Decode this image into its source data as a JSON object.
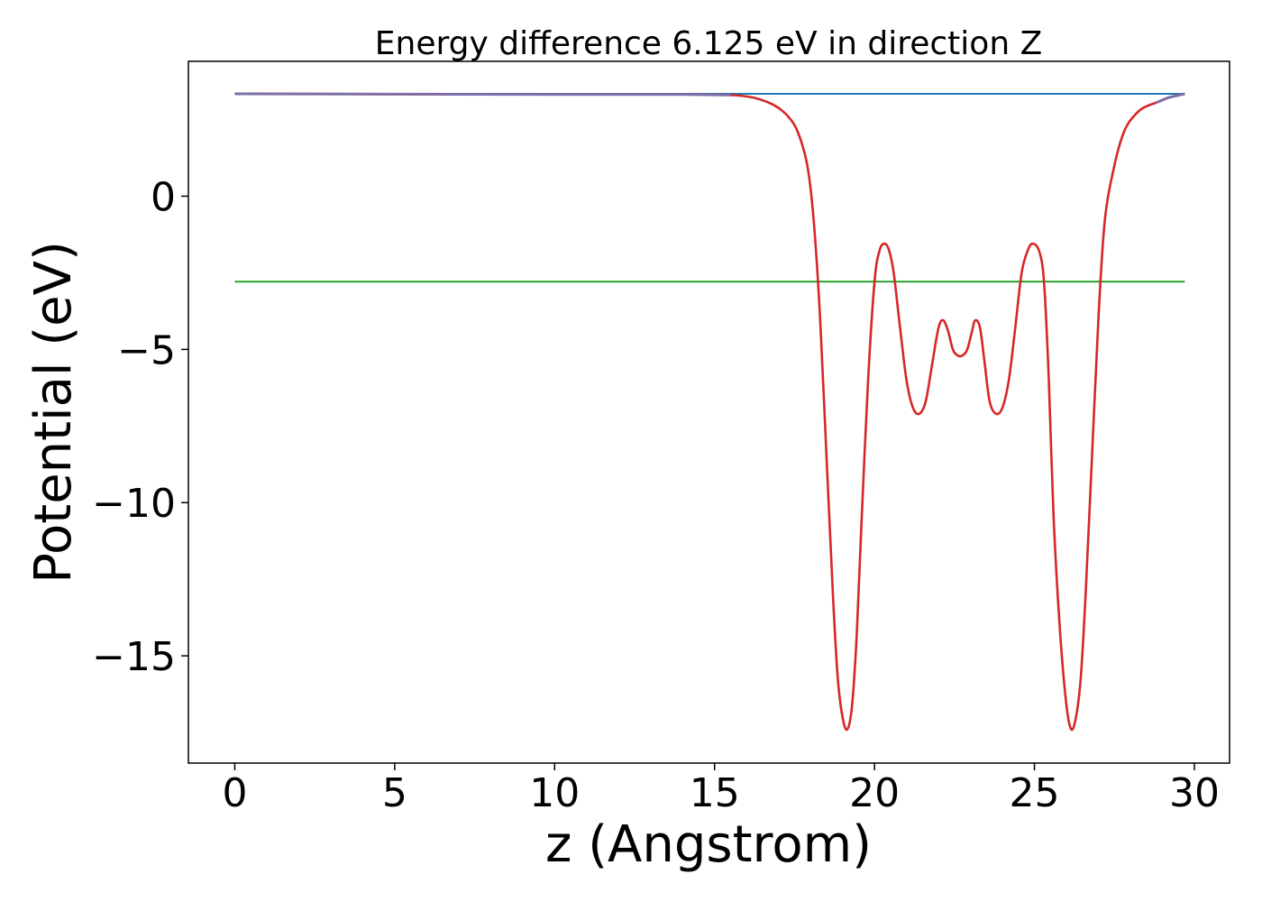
{
  "chart_data": {
    "type": "line",
    "title": "Energy difference 6.125 eV in direction Z",
    "xlabel": "z (Angstrom)",
    "ylabel": "Potential (eV)",
    "xlim": [
      -1.45,
      31.1
    ],
    "ylim": [
      -18.5,
      4.4
    ],
    "xticks": [
      0,
      5,
      10,
      15,
      20,
      25,
      30
    ],
    "yticks": [
      0,
      -5,
      -10,
      -15
    ],
    "xtick_labels": [
      "0",
      "5",
      "10",
      "15",
      "20",
      "25",
      "30"
    ],
    "ytick_labels": [
      "0",
      "−5",
      "−10",
      "−15"
    ],
    "grid": false,
    "colors": {
      "vacuum_level": "#1f77b4",
      "fermi_level": "#2ca02c",
      "potential": "#d62728",
      "overlap": "#7f6fa8"
    },
    "series": [
      {
        "style": "hline",
        "color_key": "vacuum_level",
        "x": [
          0,
          29.7
        ],
        "y": [
          3.34,
          3.34
        ]
      },
      {
        "style": "hline",
        "color_key": "fermi_level",
        "x": [
          0,
          29.7
        ],
        "y": [
          -2.79,
          -2.79
        ]
      },
      {
        "style": "curve",
        "color_key": "potential",
        "x": [
          0,
          5,
          10,
          14,
          15.5,
          16.2,
          16.7,
          17.0,
          17.3,
          17.6,
          17.9,
          18.1,
          18.3,
          18.5,
          18.7,
          18.85,
          19.0,
          19.15,
          19.3,
          19.45,
          19.6,
          19.8,
          20.0,
          20.15,
          20.3,
          20.45,
          20.6,
          20.8,
          21.0,
          21.2,
          21.4,
          21.6,
          21.8,
          22.0,
          22.15,
          22.3,
          22.45,
          22.6,
          22.75,
          22.9,
          23.05,
          23.15,
          23.3,
          23.45,
          23.6,
          23.8,
          24.0,
          24.2,
          24.4,
          24.6,
          24.8,
          24.95,
          25.15,
          25.3,
          25.45,
          25.6,
          25.8,
          26.0,
          26.15,
          26.3,
          26.45,
          26.6,
          26.8,
          27.0,
          27.2,
          27.5,
          27.8,
          28.1,
          28.4,
          28.8,
          29.2,
          29.7
        ],
        "y": [
          3.34,
          3.33,
          3.32,
          3.32,
          3.3,
          3.22,
          3.05,
          2.88,
          2.6,
          2.1,
          1.0,
          -0.8,
          -4.0,
          -8.5,
          -13.0,
          -15.7,
          -17.0,
          -17.4,
          -16.6,
          -14.2,
          -10.5,
          -6.0,
          -2.8,
          -1.8,
          -1.55,
          -1.75,
          -2.5,
          -4.3,
          -6.0,
          -6.9,
          -7.1,
          -6.7,
          -5.5,
          -4.3,
          -4.05,
          -4.4,
          -5.0,
          -5.2,
          -5.2,
          -5.0,
          -4.4,
          -4.05,
          -4.3,
          -5.5,
          -6.7,
          -7.1,
          -6.9,
          -6.0,
          -4.3,
          -2.5,
          -1.75,
          -1.55,
          -1.8,
          -2.8,
          -6.0,
          -10.5,
          -14.2,
          -16.6,
          -17.4,
          -17.0,
          -15.7,
          -13.0,
          -8.5,
          -4.0,
          -0.8,
          1.0,
          2.1,
          2.6,
          2.88,
          3.05,
          3.22,
          3.34
        ]
      }
    ]
  }
}
